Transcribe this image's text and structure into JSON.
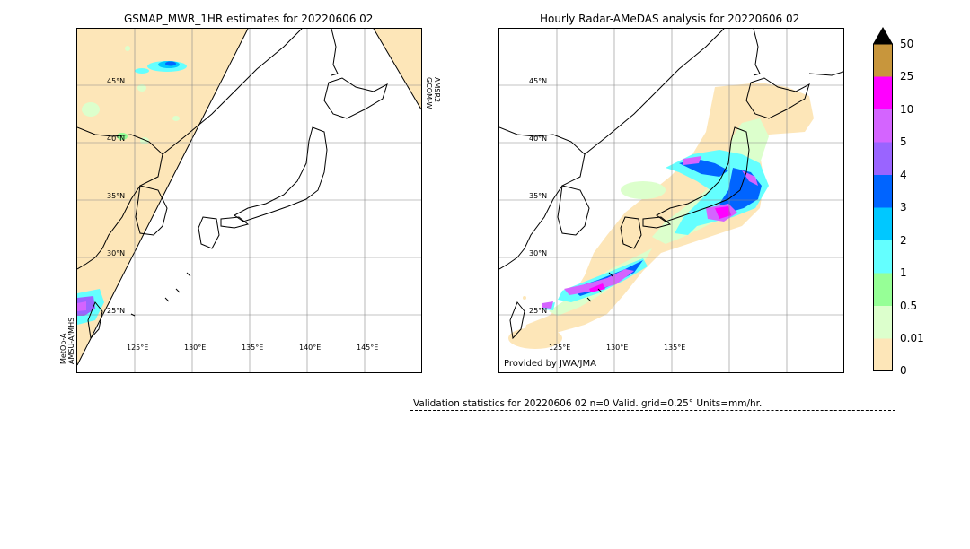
{
  "left_panel": {
    "title": "GSMAP_MWR_1HR estimates for 20220606 02",
    "lat_labels": [
      "45°N",
      "40°N",
      "35°N",
      "30°N",
      "25°N"
    ],
    "lon_labels": [
      "125°E",
      "130°E",
      "135°E",
      "140°E",
      "145°E"
    ],
    "sensor_left_line1": "MetOp-A",
    "sensor_left_line2": "AMSU-A/MHS",
    "sensor_right_line1": "GCOM-W",
    "sensor_right_line2": "AMSR2"
  },
  "right_panel": {
    "title": "Hourly Radar-AMeDAS analysis for 20220606 02",
    "lat_labels": [
      "45°N",
      "40°N",
      "35°N",
      "30°N",
      "25°N"
    ],
    "lon_labels": [
      "125°E",
      "130°E",
      "135°E"
    ],
    "provided_by": "Provided by JWA/JMA"
  },
  "colorbar": {
    "labels": [
      "50",
      "25",
      "10",
      "5",
      "4",
      "3",
      "2",
      "1",
      "0.5",
      "0.01",
      "0"
    ],
    "colors": [
      "#c8963c",
      "#ff00ff",
      "#d464ff",
      "#9a64ff",
      "#0064ff",
      "#00c8ff",
      "#64ffff",
      "#96ff96",
      "#dcffcc",
      "#fde6b8"
    ],
    "extend_color": "#000000"
  },
  "validation": {
    "text": "Validation statistics for 20220606 02  n=0 Valid. grid=0.25° Units=mm/hr."
  }
}
